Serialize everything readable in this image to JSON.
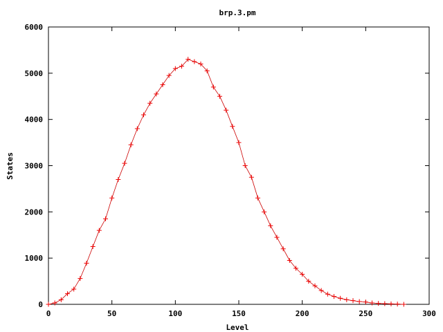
{
  "chart_data": {
    "type": "line",
    "title": "brp.3.pm",
    "xlabel": "Level",
    "ylabel": "States",
    "xlim": [
      0,
      300
    ],
    "ylim": [
      0,
      6000
    ],
    "xticks": [
      0,
      50,
      100,
      150,
      200,
      250,
      300
    ],
    "yticks": [
      0,
      1000,
      2000,
      3000,
      4000,
      5000,
      6000
    ],
    "grid": false,
    "legend": "none",
    "series": [
      {
        "color": "#ee0000",
        "marker": "plus",
        "x": [
          0,
          5,
          10,
          15,
          20,
          25,
          30,
          35,
          40,
          45,
          50,
          55,
          60,
          65,
          70,
          75,
          80,
          85,
          90,
          95,
          100,
          105,
          110,
          115,
          120,
          125,
          130,
          135,
          140,
          145,
          150,
          155,
          160,
          165,
          170,
          175,
          180,
          185,
          190,
          195,
          200,
          205,
          210,
          215,
          220,
          225,
          230,
          235,
          240,
          245,
          250,
          255,
          260,
          265,
          270,
          275,
          280
        ],
        "y": [
          0,
          30,
          100,
          230,
          330,
          560,
          890,
          1250,
          1600,
          1850,
          2300,
          2700,
          3050,
          3450,
          3800,
          4100,
          4350,
          4550,
          4750,
          4950,
          5100,
          5150,
          5300,
          5250,
          5200,
          5050,
          4700,
          4500,
          4200,
          3850,
          3500,
          3000,
          2750,
          2300,
          2000,
          1700,
          1450,
          1200,
          950,
          780,
          650,
          500,
          400,
          300,
          220,
          170,
          130,
          100,
          80,
          60,
          50,
          30,
          20,
          15,
          10,
          5,
          0
        ]
      }
    ]
  }
}
